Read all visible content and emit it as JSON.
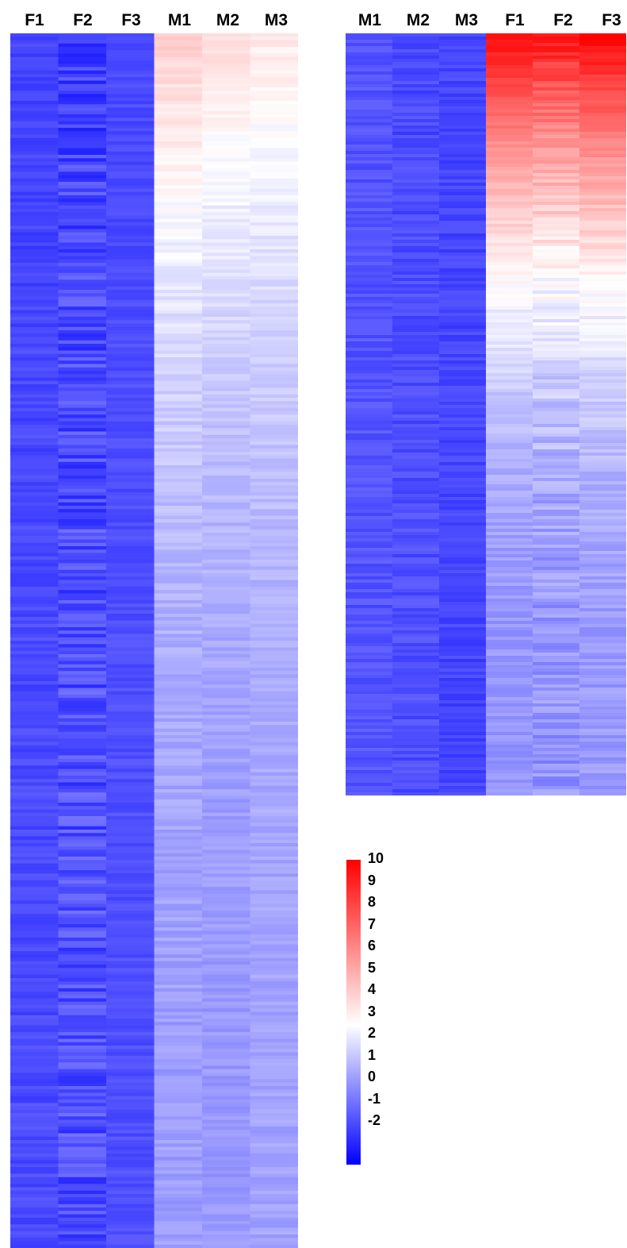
{
  "chart_data": [
    {
      "type": "heatmap",
      "columns": [
        "F1",
        "F2",
        "F3",
        "M1",
        "M2",
        "M3"
      ],
      "row_count": 360,
      "value_range": [
        -2,
        10
      ],
      "profile": {
        "F1": {
          "start": -0.6,
          "end": -0.4,
          "noise": 0.35
        },
        "F2": {
          "start": -0.6,
          "end": -0.3,
          "noise": 0.8
        },
        "F3": {
          "start": -0.4,
          "end": -0.3,
          "noise": 0.3
        },
        "M1": {
          "start": 4.8,
          "end": 1.4,
          "noise": 0.35
        },
        "M2": {
          "start": 4.4,
          "end": 1.3,
          "noise": 0.3
        },
        "M3": {
          "start": 4.1,
          "end": 1.5,
          "noise": 0.3
        }
      }
    },
    {
      "type": "heatmap",
      "columns": [
        "M1",
        "M2",
        "M3",
        "F1",
        "F2",
        "F3"
      ],
      "row_count": 240,
      "value_range": [
        -2,
        10
      ],
      "profile": {
        "M1": {
          "start": -0.2,
          "end": -0.2,
          "noise": 0.35
        },
        "M2": {
          "start": -0.5,
          "end": -0.3,
          "noise": 0.4
        },
        "M3": {
          "start": -0.5,
          "end": -0.5,
          "noise": 0.35
        },
        "F1": {
          "start": 9.8,
          "end": 1.2,
          "noise": 0.35
        },
        "F2": {
          "start": 9.5,
          "end": 1.2,
          "noise": 0.6
        },
        "F3": {
          "start": 10.0,
          "end": 1.3,
          "noise": 0.4
        }
      }
    }
  ],
  "colorbar": {
    "min": -2,
    "mid": 3.5,
    "max": 10,
    "colors": {
      "low": "#0000ff",
      "mid": "#ffffff",
      "high": "#ff0000"
    },
    "ticks": [
      "10",
      "9",
      "8",
      "7",
      "6",
      "5",
      "4",
      "3",
      "2",
      "1",
      "0",
      "-1",
      "-2"
    ]
  }
}
